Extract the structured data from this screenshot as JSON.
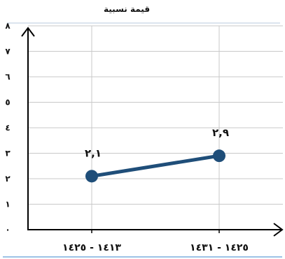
{
  "chart_data": {
    "type": "line",
    "ylabel": "قيمة نسبية",
    "categories": [
      "١٤١٣ - ١٤٢٥",
      "١٤٢٥ - ١٤٣١"
    ],
    "values": [
      2.1,
      2.9
    ],
    "data_labels": [
      "٢,١",
      "٢,٩"
    ],
    "ylim": [
      0,
      8
    ],
    "y_ticks": [
      "٠",
      "١",
      "٢",
      "٣",
      "٤",
      "٥",
      "٦",
      "٧",
      "٨"
    ],
    "grid": true,
    "colors": {
      "line": "#1f4e79",
      "grid": "#c8c8c8",
      "axis": "#000000",
      "top_rule": "#b7c9dc",
      "bottom_rule": "#9dc3e6"
    }
  }
}
